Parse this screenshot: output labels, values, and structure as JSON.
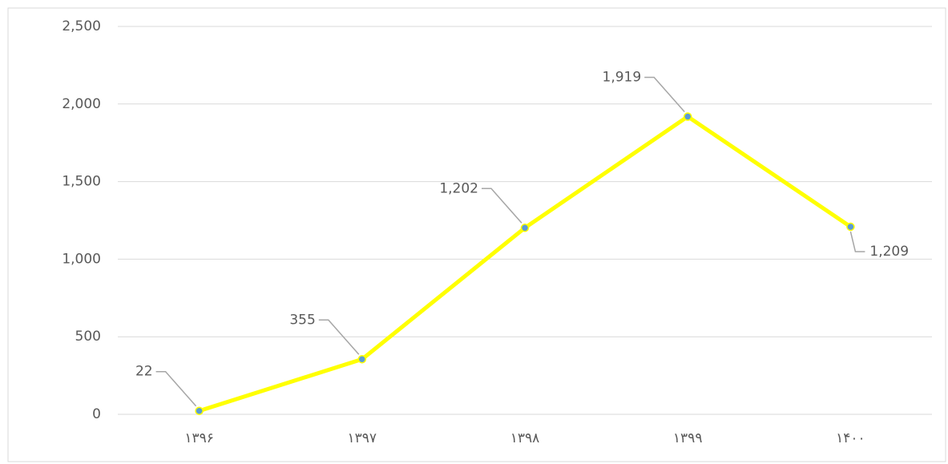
{
  "chart_data": {
    "type": "line",
    "categories": [
      "۱۳۹۶",
      "۱۳۹۷",
      "۱۳۹۸",
      "۱۳۹۹",
      "۱۴۰۰"
    ],
    "values": [
      22,
      355,
      1202,
      1919,
      1209
    ],
    "value_labels": [
      "22",
      "355",
      "1,202",
      "1,919",
      "1,209"
    ],
    "color": "#ffff00",
    "marker_color": "#5b9bd5",
    "ylim": [
      0,
      2500
    ],
    "yticks": [
      0,
      500,
      {
        "value": 1000,
        "label": "1,000"
      },
      {
        "value": 1500,
        "label": "1,500"
      },
      {
        "value": 2000,
        "label": "2,000"
      },
      {
        "value": 2500,
        "label": "2,500"
      }
    ],
    "grid": true
  }
}
